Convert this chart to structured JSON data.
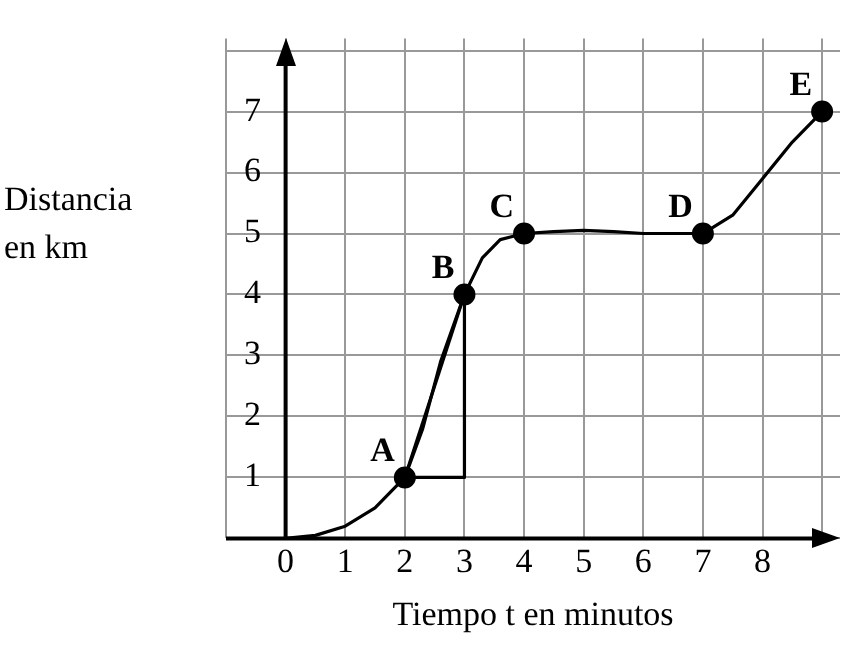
{
  "chart_data": {
    "type": "line",
    "xlabel": "Tiempo t en minutos",
    "ylabel": "Distancia en km",
    "xlim": [
      -1,
      9.3
    ],
    "ylim": [
      0,
      8.2
    ],
    "xticks": [
      {
        "value": -1,
        "label": null
      },
      0,
      1,
      2,
      3,
      4,
      5,
      6,
      7,
      8,
      {
        "value": 9,
        "label": null
      }
    ],
    "yticks": [
      {
        "value": 0,
        "label": null
      },
      1,
      2,
      3,
      4,
      5,
      6,
      7,
      {
        "value": 8,
        "label": null
      }
    ],
    "grid": true,
    "legend": false,
    "series": [
      {
        "color": "#000000",
        "marker": "none",
        "x": [
          0,
          0.5,
          1,
          1.5,
          2,
          2.3,
          2.6,
          3,
          3.3,
          3.6,
          4,
          4.5,
          5,
          5.5,
          6,
          6.5,
          7,
          7.5,
          8,
          8.5,
          9
        ],
        "values": [
          0,
          0.05,
          0.2,
          0.5,
          1,
          1.8,
          2.9,
          4,
          4.6,
          4.9,
          5,
          5.03,
          5.05,
          5.03,
          5,
          5,
          5,
          5.3,
          5.9,
          6.5,
          7
        ]
      },
      {
        "type": "line",
        "color": "#000000",
        "marker": "none",
        "x": [
          2,
          3
        ],
        "values": [
          1,
          4
        ]
      },
      {
        "type": "line",
        "color": "#000000",
        "marker": "none",
        "x": [
          2,
          3,
          3
        ],
        "values": [
          1,
          1,
          4
        ]
      },
      {
        "type": "scatter",
        "color": "#000000",
        "marker": "circle",
        "x": [
          2,
          3,
          4,
          7,
          9
        ],
        "values": [
          1,
          4,
          5,
          5,
          7
        ]
      }
    ],
    "annotations": [
      {
        "text": "A",
        "x": 2,
        "y": 1
      },
      {
        "text": "B",
        "x": 3,
        "y": 4
      },
      {
        "text": "C",
        "x": 4,
        "y": 5
      },
      {
        "text": "D",
        "x": 7,
        "y": 5
      },
      {
        "text": "E",
        "x": 9,
        "y": 7
      }
    ]
  }
}
